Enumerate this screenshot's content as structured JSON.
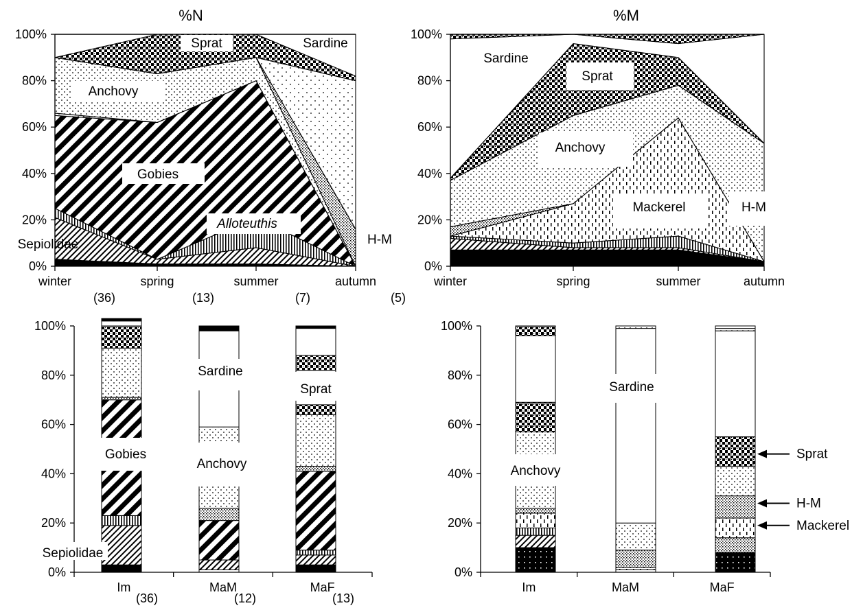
{
  "chart_data": [
    {
      "id": "nSeason",
      "type": "area",
      "title": "%N",
      "categories": [
        "winter",
        "spring",
        "summer",
        "autumn"
      ],
      "counts": [
        "(36)",
        "(13)",
        "(7)",
        "(5)"
      ],
      "ylim": [
        0,
        100
      ],
      "yticks": [
        "0%",
        "20%",
        "40%",
        "60%",
        "80%",
        "100%"
      ],
      "series": [
        {
          "name": "",
          "pattern": "solid",
          "values": [
            3,
            1,
            1,
            0
          ]
        },
        {
          "name": "Sepiolidae",
          "pattern": "diagfine",
          "values": [
            18,
            2,
            7,
            0
          ]
        },
        {
          "name": "Alloteuthis",
          "pattern": "vert",
          "values": [
            4,
            0,
            13,
            0
          ]
        },
        {
          "name": "Gobies",
          "pattern": "diag",
          "values": [
            40,
            59,
            59,
            0
          ]
        },
        {
          "name": "",
          "pattern": "dots",
          "values": [
            1,
            0,
            0,
            0
          ]
        },
        {
          "name": "Anchovy",
          "pattern": "dots",
          "values": [
            24,
            21,
            10,
            0
          ]
        },
        {
          "name": "H-M",
          "pattern": "cross",
          "values": [
            0,
            0,
            0,
            16
          ]
        },
        {
          "name": "Sardine",
          "pattern": "dotsSparse",
          "values": [
            0,
            0,
            0,
            64
          ]
        },
        {
          "name": "Sprat",
          "pattern": "check",
          "values": [
            0,
            17,
            10,
            2
          ]
        },
        {
          "name": "",
          "pattern": "empty",
          "values": [
            10,
            0,
            0,
            18
          ]
        }
      ],
      "labels": [
        {
          "text": "Sprat",
          "italic": false
        },
        {
          "text": "Sardine",
          "italic": false
        },
        {
          "text": "Anchovy",
          "italic": false
        },
        {
          "text": "Gobies",
          "italic": false
        },
        {
          "text": "Alloteuthis",
          "italic": true
        },
        {
          "text": "Sepiolidae",
          "italic": false
        },
        {
          "text": "H-M",
          "italic": false
        }
      ]
    },
    {
      "id": "mSeason",
      "type": "area",
      "title": "%M",
      "categories": [
        "winter",
        "spring",
        "summer",
        "autumn"
      ],
      "ylim": [
        0,
        100
      ],
      "yticks": [
        "0%",
        "20%",
        "40%",
        "60%",
        "80%",
        "100%"
      ],
      "series": [
        {
          "name": "",
          "pattern": "solid",
          "values": [
            7,
            7,
            7,
            2
          ]
        },
        {
          "name": "",
          "pattern": "diagfine",
          "values": [
            5,
            1,
            1,
            0
          ]
        },
        {
          "name": "",
          "pattern": "vert",
          "values": [
            1,
            2,
            5,
            0
          ]
        },
        {
          "name": "Mackerel",
          "pattern": "dash",
          "values": [
            0,
            17,
            51,
            0
          ]
        },
        {
          "name": "H-M",
          "pattern": "cross",
          "values": [
            4,
            0,
            0,
            0
          ]
        },
        {
          "name": "Anchovy",
          "pattern": "dots",
          "values": [
            20,
            38,
            14,
            51
          ]
        },
        {
          "name": "Sprat",
          "pattern": "check",
          "values": [
            1,
            31,
            12,
            0
          ]
        },
        {
          "name": "Sardine",
          "pattern": "empty",
          "values": [
            60,
            4,
            6,
            47
          ]
        },
        {
          "name": "",
          "pattern": "check",
          "values": [
            2,
            0,
            4,
            0
          ]
        }
      ],
      "labels": [
        {
          "text": "Sardine",
          "italic": false
        },
        {
          "text": "Sprat",
          "italic": false
        },
        {
          "text": "Anchovy",
          "italic": false
        },
        {
          "text": "Mackerel",
          "italic": false
        },
        {
          "text": "H-M",
          "italic": false
        }
      ]
    },
    {
      "id": "nSex",
      "type": "bar",
      "categories": [
        "Im",
        "MaM",
        "MaF"
      ],
      "counts": [
        "(36)",
        "(12)",
        "(13)"
      ],
      "ylim": [
        0,
        100
      ],
      "yticks": [
        "0%",
        "20%",
        "40%",
        "60%",
        "80%",
        "100%"
      ],
      "bars": [
        [
          {
            "name": "",
            "pattern": "solid",
            "value": 3
          },
          {
            "name": "Sepiolidae",
            "pattern": "diagfine",
            "value": 16
          },
          {
            "name": "Alloteuthis",
            "pattern": "vert",
            "value": 4
          },
          {
            "name": "Gobies",
            "pattern": "diag",
            "value": 47
          },
          {
            "name": "",
            "pattern": "cross",
            "value": 1
          },
          {
            "name": "Anchovy",
            "pattern": "dots",
            "value": 20
          },
          {
            "name": "Sprat",
            "pattern": "check",
            "value": 9
          },
          {
            "name": "Sardine",
            "pattern": "empty",
            "value": 2
          },
          {
            "name": "",
            "pattern": "solid",
            "value": 1
          }
        ],
        [
          {
            "name": "",
            "pattern": "empty",
            "value": 1
          },
          {
            "name": "Sepiolidae",
            "pattern": "diagfine",
            "value": 4
          },
          {
            "name": "Gobies",
            "pattern": "diag",
            "value": 16
          },
          {
            "name": "H-M",
            "pattern": "cross",
            "value": 5
          },
          {
            "name": "Anchovy",
            "pattern": "dots",
            "value": 33
          },
          {
            "name": "Sardine",
            "pattern": "empty",
            "value": 39
          },
          {
            "name": "",
            "pattern": "solid",
            "value": 2
          }
        ],
        [
          {
            "name": "",
            "pattern": "solid",
            "value": 3
          },
          {
            "name": "Sepiolidae",
            "pattern": "diagfine",
            "value": 4
          },
          {
            "name": "Alloteuthis",
            "pattern": "vert",
            "value": 2
          },
          {
            "name": "Gobies",
            "pattern": "diag",
            "value": 32
          },
          {
            "name": "H-M",
            "pattern": "cross",
            "value": 2
          },
          {
            "name": "Anchovy",
            "pattern": "dots",
            "value": 21
          },
          {
            "name": "",
            "pattern": "check",
            "value": 4
          },
          {
            "name": "Sprat",
            "pattern": "empty",
            "value": 14
          },
          {
            "name": "",
            "pattern": "check",
            "value": 6
          },
          {
            "name": "Sardine",
            "pattern": "empty",
            "value": 11
          },
          {
            "name": "",
            "pattern": "solid",
            "value": 1
          }
        ]
      ],
      "labels": [
        {
          "text": "Gobies",
          "italic": false
        },
        {
          "text": "Sepiolidae",
          "italic": false
        },
        {
          "text": "Sardine",
          "italic": false
        },
        {
          "text": "Anchovy",
          "italic": false
        },
        {
          "text": "Sprat",
          "italic": false
        }
      ]
    },
    {
      "id": "mSex",
      "type": "bar",
      "categories": [
        "Im",
        "MaM",
        "MaF"
      ],
      "ylim": [
        0,
        100
      ],
      "yticks": [
        "0%",
        "20%",
        "40%",
        "60%",
        "80%",
        "100%"
      ],
      "bars": [
        [
          {
            "name": "",
            "pattern": "solidDots",
            "value": 10
          },
          {
            "name": "",
            "pattern": "diagfine",
            "value": 5
          },
          {
            "name": "",
            "pattern": "vert",
            "value": 3
          },
          {
            "name": "Mackerel",
            "pattern": "dash",
            "value": 6
          },
          {
            "name": "H-M",
            "pattern": "cross",
            "value": 2
          },
          {
            "name": "Anchovy",
            "pattern": "dots",
            "value": 31
          },
          {
            "name": "Sprat",
            "pattern": "check",
            "value": 12
          },
          {
            "name": "Sardine",
            "pattern": "empty",
            "value": 27
          },
          {
            "name": "",
            "pattern": "check",
            "value": 4
          }
        ],
        [
          {
            "name": "",
            "pattern": "empty",
            "value": 1
          },
          {
            "name": "Mackerel",
            "pattern": "dash",
            "value": 1
          },
          {
            "name": "H-M",
            "pattern": "cross",
            "value": 7
          },
          {
            "name": "Anchovy",
            "pattern": "dots",
            "value": 11
          },
          {
            "name": "Sardine",
            "pattern": "empty",
            "value": 79
          },
          {
            "name": "",
            "pattern": "dots",
            "value": 1
          }
        ],
        [
          {
            "name": "",
            "pattern": "solidDots",
            "value": 8
          },
          {
            "name": "",
            "pattern": "cross",
            "value": 6
          },
          {
            "name": "Mackerel",
            "pattern": "dash",
            "value": 8
          },
          {
            "name": "H-M",
            "pattern": "cross",
            "value": 9
          },
          {
            "name": "Anchovy",
            "pattern": "dots",
            "value": 12
          },
          {
            "name": "Sprat",
            "pattern": "check",
            "value": 12
          },
          {
            "name": "Sardine",
            "pattern": "empty",
            "value": 43
          },
          {
            "name": "",
            "pattern": "dots",
            "value": 1
          },
          {
            "name": "",
            "pattern": "empty",
            "value": 1
          }
        ]
      ],
      "labels": [
        {
          "text": "Anchovy",
          "italic": false
        },
        {
          "text": "Sardine",
          "italic": false
        }
      ],
      "arrows": [
        {
          "text": "Sprat",
          "value": 48
        },
        {
          "text": "H-M",
          "value": 28
        },
        {
          "text": "Mackerel",
          "value": 19
        }
      ]
    }
  ]
}
